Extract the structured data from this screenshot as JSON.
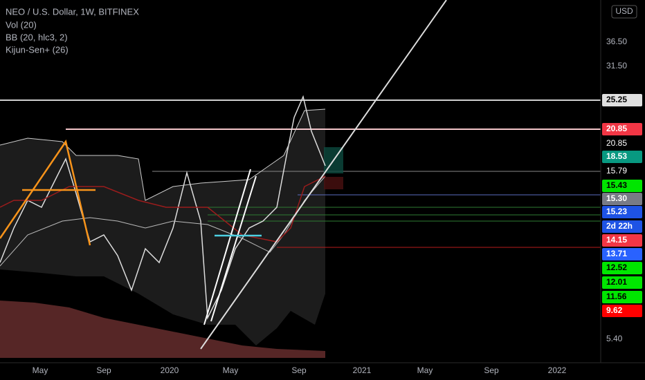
{
  "header": {
    "symbol": "NEO / U.S. Dollar, 1W, BITFINEX",
    "indicators": [
      "Vol (20)",
      "BB (20, hlc3, 2)",
      "Kijun-Sen+ (26)"
    ]
  },
  "price_axis": {
    "currency": "USD",
    "labels": [
      {
        "text": "36.50",
        "bg": null,
        "color": "#b2b5be"
      },
      {
        "text": "31.50",
        "bg": null,
        "color": "#b2b5be"
      },
      {
        "text": "25.25",
        "bg": "#e0e0e0",
        "color": "#000000"
      },
      {
        "text": "20.85",
        "bg": "#f23645",
        "color": "#ffffff"
      },
      {
        "text": "20.85",
        "bg": null,
        "color": "#ffffff"
      },
      {
        "text": "18.53",
        "bg": "#089981",
        "color": "#ffffff"
      },
      {
        "text": "15.79",
        "bg": null,
        "color": "#ffffff"
      },
      {
        "text": "15.43",
        "bg": "#00e600",
        "color": "#000000"
      },
      {
        "text": "15.30",
        "bg": "#787b86",
        "color": "#ffffff"
      },
      {
        "text": "15.23",
        "bg": "#1e53e5",
        "color": "#ffffff"
      },
      {
        "text": "2d 22h",
        "bg": "#1e53e5",
        "color": "#ffffff"
      },
      {
        "text": "14.15",
        "bg": "#f23645",
        "color": "#ffffff"
      },
      {
        "text": "13.71",
        "bg": "#2962ff",
        "color": "#ffffff"
      },
      {
        "text": "12.52",
        "bg": "#00e600",
        "color": "#000000"
      },
      {
        "text": "12.01",
        "bg": "#00e600",
        "color": "#000000"
      },
      {
        "text": "11.56",
        "bg": "#00e600",
        "color": "#000000"
      },
      {
        "text": "9.62",
        "bg": "#ff0000",
        "color": "#ffffff"
      },
      {
        "text": "5.40",
        "bg": null,
        "color": "#b2b5be"
      }
    ]
  },
  "time_axis": {
    "labels": [
      "May",
      "Sep",
      "2020",
      "May",
      "Sep",
      "2021",
      "May",
      "Sep",
      "2022"
    ]
  }
}
